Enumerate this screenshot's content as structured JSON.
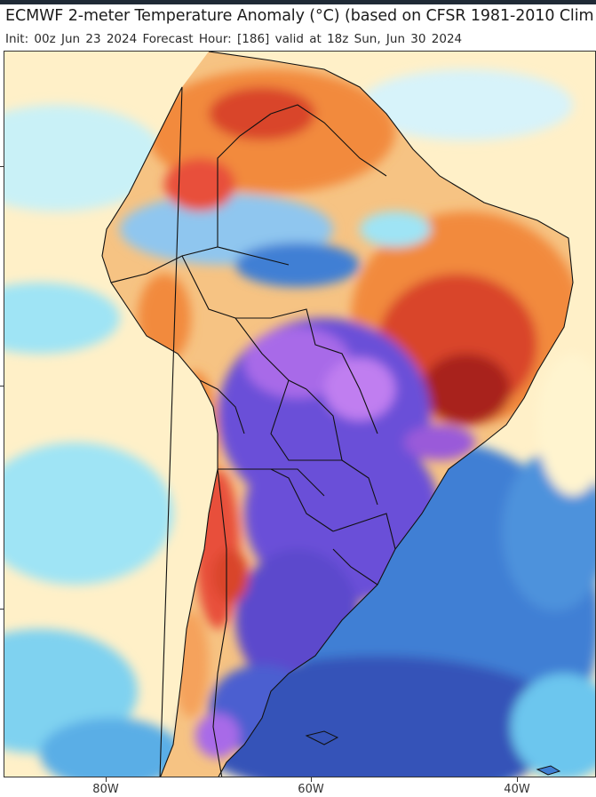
{
  "title": "ECMWF 2-meter Temperature Anomaly (°C) (based on CFSR 1981-2010 Clim",
  "subtitle": "Init: 00z Jun 23 2024   Forecast Hour: [186]   valid at 18z Sun, Jun 30 2024",
  "axis": {
    "x_ticks": [
      "80W",
      "60W",
      "40W"
    ]
  },
  "colors": {
    "ocean_pale": "#fff0c8",
    "ocean_cyan": "#9fe4f5",
    "ocean_blue": "#3f7fd4",
    "ocean_deep": "#3553b8",
    "warm_orange": "#f28a3c",
    "warm_red": "#d9452c",
    "deep_red": "#a8221f",
    "cold_purple": "#6a4fd8",
    "cold_violet": "#a86be8",
    "border": "#111111"
  }
}
